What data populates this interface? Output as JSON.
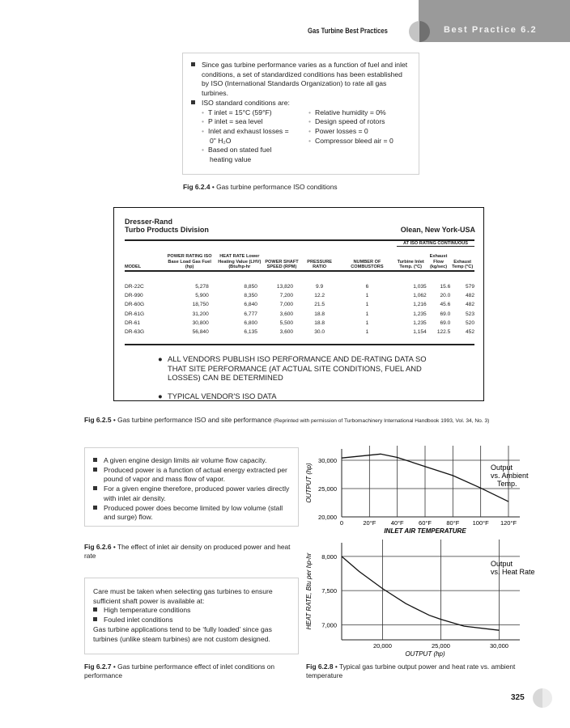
{
  "header": {
    "running_title": "Gas Turbine Best Practices",
    "section": "Best Practice 6.2"
  },
  "fig624": {
    "bullets": [
      "Since gas turbine performance varies as a function of fuel and inlet conditions, a set of standardized conditions has been established by ISO (International Standards Organization) to rate all gas turbines.",
      "ISO standard conditions are:"
    ],
    "conditions_left": [
      "T inlet = 15°C (59°F)",
      "P inlet = sea level",
      "Inlet and exhaust losses = 0\" H₂O",
      "Based on stated fuel heating value"
    ],
    "conditions_right": [
      "Relative humidity = 0%",
      "Design speed of rotors",
      "Power losses = 0",
      "Compressor bleed air = 0"
    ],
    "caption_label": "Fig 6.2.4",
    "caption": "Gas turbine performance ISO conditions"
  },
  "fig625": {
    "company": "Dresser-Rand",
    "division": "Turbo Products Division",
    "location": "Olean, New York-USA",
    "group_header": "AT ISO RATING CONTINUOUS",
    "columns": [
      "MODEL",
      "POWER RATING ISO Base Load Gas Fuel (hp)",
      "HEAT RATE Lower Heating Value (LHV) (Btu/hp-hr",
      "POWER SHAFT SPEED (RPM)",
      "PRESSURE RATIO",
      "NUMBER OF COMBUSTORS",
      "Turbine Inlet Temp. (°C)",
      "Exhaust Flow (kg/sec)",
      "Exhaust Temp (°C)"
    ],
    "rows": [
      [
        "DR-22C",
        "5,278",
        "8,850",
        "13,820",
        "9.9",
        "6",
        "1,035",
        "15.6",
        "579"
      ],
      [
        "DR-990",
        "5,900",
        "8,350",
        "7,200",
        "12.2",
        "1",
        "1,062",
        "20.0",
        "482"
      ],
      [
        "DR-60G",
        "18,750",
        "6,840",
        "7,000",
        "21.5",
        "1",
        "1,216",
        "45.6",
        "482"
      ],
      [
        "DR-61G",
        "31,200",
        "6,777",
        "3,600",
        "18.8",
        "1",
        "1,235",
        "69.0",
        "523"
      ],
      [
        "DR-61",
        "30,800",
        "6,800",
        "5,500",
        "18.8",
        "1",
        "1,235",
        "69.0",
        "520"
      ],
      [
        "DR-63G",
        "56,840",
        "6,135",
        "3,600",
        "30.0",
        "1",
        "1,154",
        "122.5",
        "452"
      ]
    ],
    "notes": [
      "ALL VENDORS PUBLISH ISO PERFORMANCE AND DE-RATING DATA SO THAT SITE PERFORMANCE (AT ACTUAL SITE CONDITIONS, FUEL AND LOSSES) CAN BE DETERMINED",
      "TYPICAL VENDOR'S ISO DATA"
    ],
    "caption_label": "Fig 6.2.5",
    "caption": "Gas turbine performance ISO and site performance",
    "caption_note": "(Reprinted with permission of Turbomachinery International Handbook 1993, Vol. 34, No. 3)"
  },
  "fig626": {
    "bullets": [
      "A given engine design limits air volume flow capacity.",
      "Produced power is a function of actual energy extracted per pound of vapor and mass flow of vapor.",
      "For a given engine therefore, produced power varies directly with inlet air density.",
      "Produced power does become limited by low volume (stall and surge) flow."
    ],
    "caption_label": "Fig 6.2.6",
    "caption": "The effect of inlet air density on produced power and heat rate"
  },
  "fig627": {
    "intro": "Care must be taken when selecting gas turbines to ensure sufficient shaft power is available at:",
    "bullets": [
      "High temperature conditions",
      "Fouled inlet conditions"
    ],
    "outro": "Gas turbine applications tend to be ‘fully loaded’ since gas turbines (unlike steam turbines) are not custom designed.",
    "caption_label": "Fig 6.2.7",
    "caption": "Gas turbine performance effect of inlet conditions on performance"
  },
  "fig628": {
    "caption_label": "Fig 6.2.8",
    "caption": "Typical gas turbine output power and heat rate vs. ambient temperature"
  },
  "chart_data": [
    {
      "type": "line",
      "xlabel": "INLET AIR TEMPERATURE",
      "ylabel": "OUTPUT (hp)",
      "annotation": "Output vs. Ambient Temp.",
      "xlim": [
        0,
        120
      ],
      "ylim": [
        20000,
        32000
      ],
      "xticks": [
        "0",
        "20°F",
        "40°F",
        "60°F",
        "80°F",
        "100°F",
        "120°F"
      ],
      "xtick_values": [
        0,
        20,
        40,
        60,
        80,
        100,
        120
      ],
      "yticks": [
        "20,000",
        "25,000",
        "30,000"
      ],
      "ytick_values": [
        20000,
        25000,
        30000
      ],
      "grid": true,
      "x": [
        0,
        28,
        40,
        60,
        80,
        100,
        120
      ],
      "y": [
        30400,
        31100,
        30500,
        28900,
        27300,
        25100,
        22700
      ]
    },
    {
      "type": "line",
      "xlabel": "OUTPUT (hp)",
      "ylabel": "HEAT RATE, Btu per hp-hr",
      "annotation": "Output vs. Heat Rate",
      "xlim": [
        16500,
        30800
      ],
      "ylim": [
        6780,
        8200
      ],
      "xticks": [
        "20,000",
        "25,000",
        "30,000"
      ],
      "xtick_values": [
        20000,
        25000,
        30000
      ],
      "yticks": [
        "7,000",
        "7,500",
        "8,000"
      ],
      "ytick_values": [
        7000,
        7500,
        8000
      ],
      "grid": true,
      "x": [
        16500,
        18000,
        20000,
        22000,
        24000,
        25000,
        27000,
        30000
      ],
      "y": [
        8000,
        7780,
        7530,
        7310,
        7140,
        7080,
        6980,
        6920
      ]
    }
  ],
  "footer": {
    "page_number": "325"
  }
}
